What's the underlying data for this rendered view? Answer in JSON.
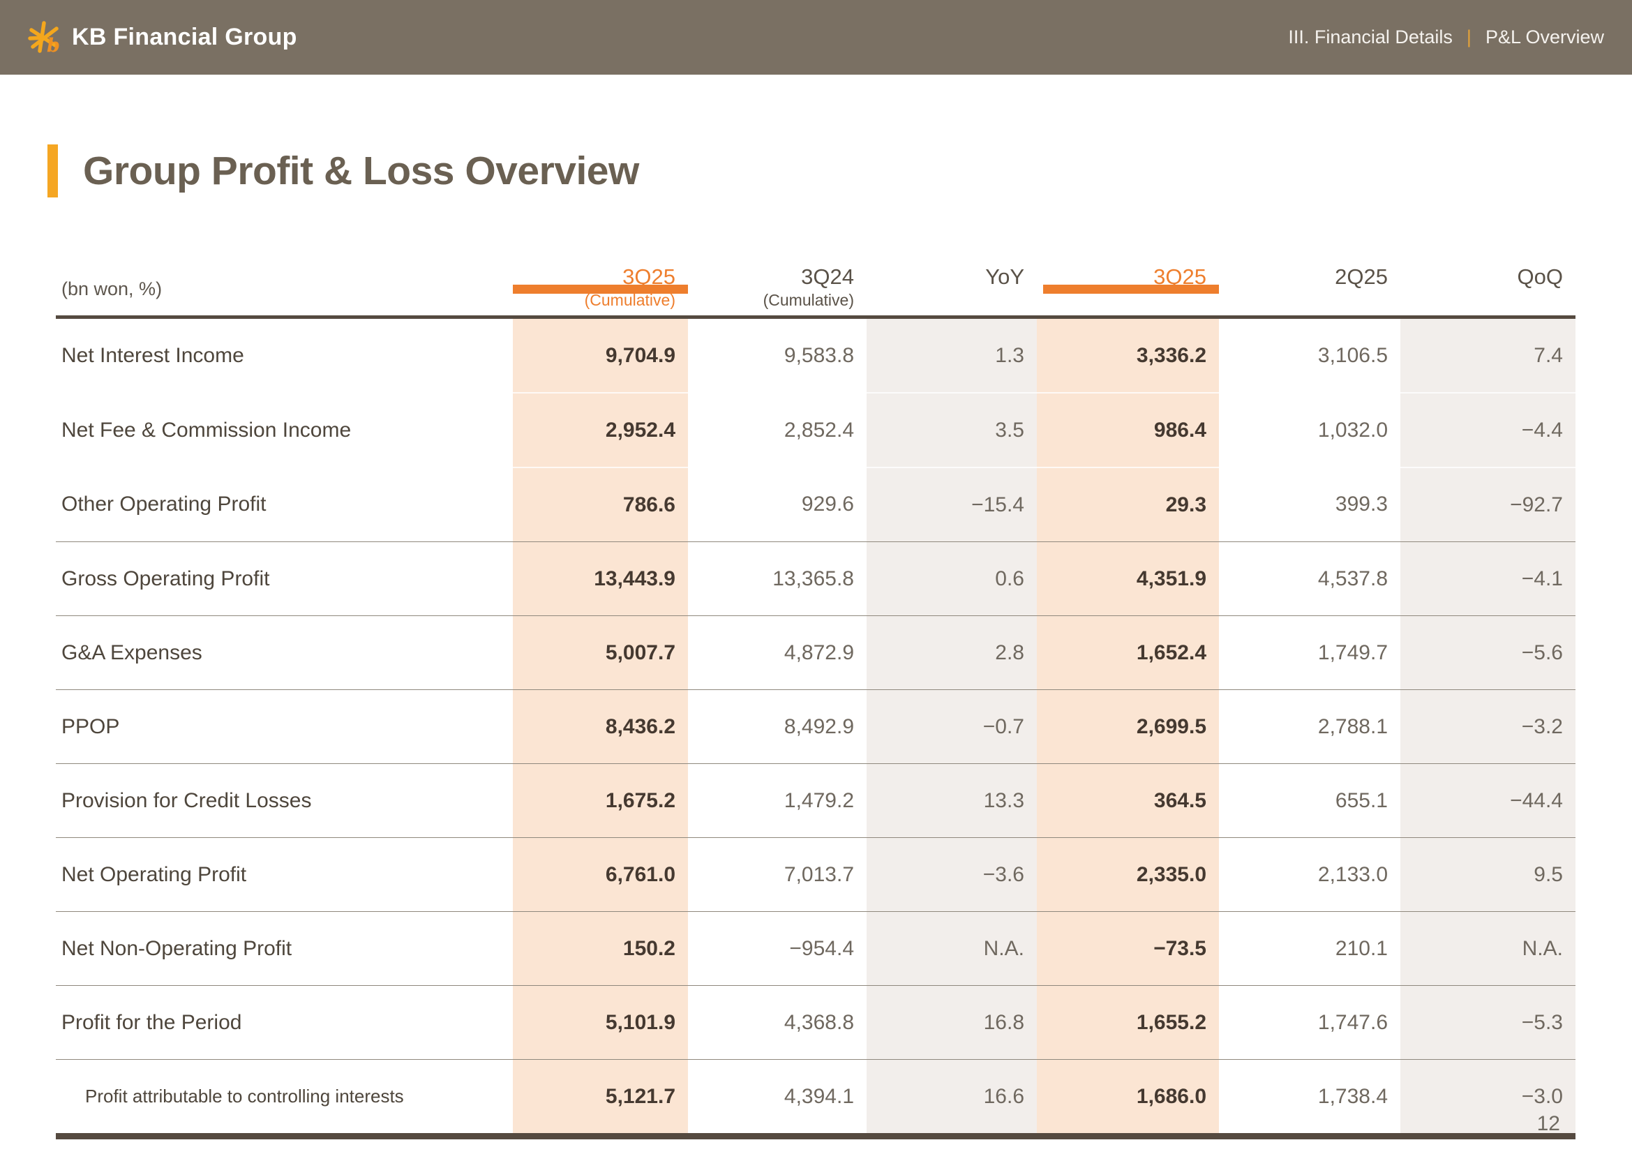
{
  "topbar": {
    "logo_text": "KB Financial Group",
    "section": "III. Financial Details",
    "divider": "|",
    "subsection": "P&L Overview"
  },
  "title": "Group Profit & Loss Overview",
  "page_number": "12",
  "colors": {
    "topbar_bg": "#7a7063",
    "accent_orange": "#ee7e2d",
    "accent_yellow": "#f5a623",
    "highlight_column_bg": "#fbe5d3",
    "tint_column_bg": "#f2eeeb",
    "table_line_dark": "#554a40"
  },
  "table": {
    "unit_label": "(bn won, %)",
    "columns": [
      {
        "label": "3Q25",
        "sublabel": "(Cumulative)",
        "highlight": true
      },
      {
        "label": "3Q24",
        "sublabel": "(Cumulative)",
        "highlight": false
      },
      {
        "label": "YoY",
        "sublabel": "",
        "highlight": false
      },
      {
        "label": "3Q25",
        "sublabel": "",
        "highlight": true
      },
      {
        "label": "2Q25",
        "sublabel": "",
        "highlight": false
      },
      {
        "label": "QoQ",
        "sublabel": "",
        "highlight": false
      }
    ],
    "rows": [
      {
        "label": "Net Interest Income",
        "indent": false,
        "values": [
          "9,704.9",
          "9,583.8",
          "1.3",
          "3,336.2",
          "3,106.5",
          "7.4"
        ]
      },
      {
        "label": "Net Fee & Commission Income",
        "indent": false,
        "values": [
          "2,952.4",
          "2,852.4",
          "3.5",
          "986.4",
          "1,032.0",
          "−4.4"
        ]
      },
      {
        "label": "Other Operating Profit",
        "indent": false,
        "values": [
          "786.6",
          "929.6",
          "−15.4",
          "29.3",
          "399.3",
          "−92.7"
        ]
      },
      {
        "label": "Gross Operating Profit",
        "indent": false,
        "values": [
          "13,443.9",
          "13,365.8",
          "0.6",
          "4,351.9",
          "4,537.8",
          "−4.1"
        ]
      },
      {
        "label": "G&A Expenses",
        "indent": false,
        "values": [
          "5,007.7",
          "4,872.9",
          "2.8",
          "1,652.4",
          "1,749.7",
          "−5.6"
        ]
      },
      {
        "label": "PPOP",
        "indent": false,
        "values": [
          "8,436.2",
          "8,492.9",
          "−0.7",
          "2,699.5",
          "2,788.1",
          "−3.2"
        ]
      },
      {
        "label": "Provision for Credit Losses",
        "indent": false,
        "values": [
          "1,675.2",
          "1,479.2",
          "13.3",
          "364.5",
          "655.1",
          "−44.4"
        ]
      },
      {
        "label": "Net Operating Profit",
        "indent": false,
        "values": [
          "6,761.0",
          "7,013.7",
          "−3.6",
          "2,335.0",
          "2,133.0",
          "9.5"
        ]
      },
      {
        "label": "Net Non-Operating Profit",
        "indent": false,
        "values": [
          "150.2",
          "−954.4",
          "N.A.",
          "−73.5",
          "210.1",
          "N.A."
        ]
      },
      {
        "label": "Profit for the Period",
        "indent": false,
        "values": [
          "5,101.9",
          "4,368.8",
          "16.8",
          "1,655.2",
          "1,747.6",
          "−5.3"
        ]
      },
      {
        "label": "Profit attributable to controlling interests",
        "indent": true,
        "values": [
          "5,121.7",
          "4,394.1",
          "16.6",
          "1,686.0",
          "1,738.4",
          "−3.0"
        ]
      }
    ]
  }
}
